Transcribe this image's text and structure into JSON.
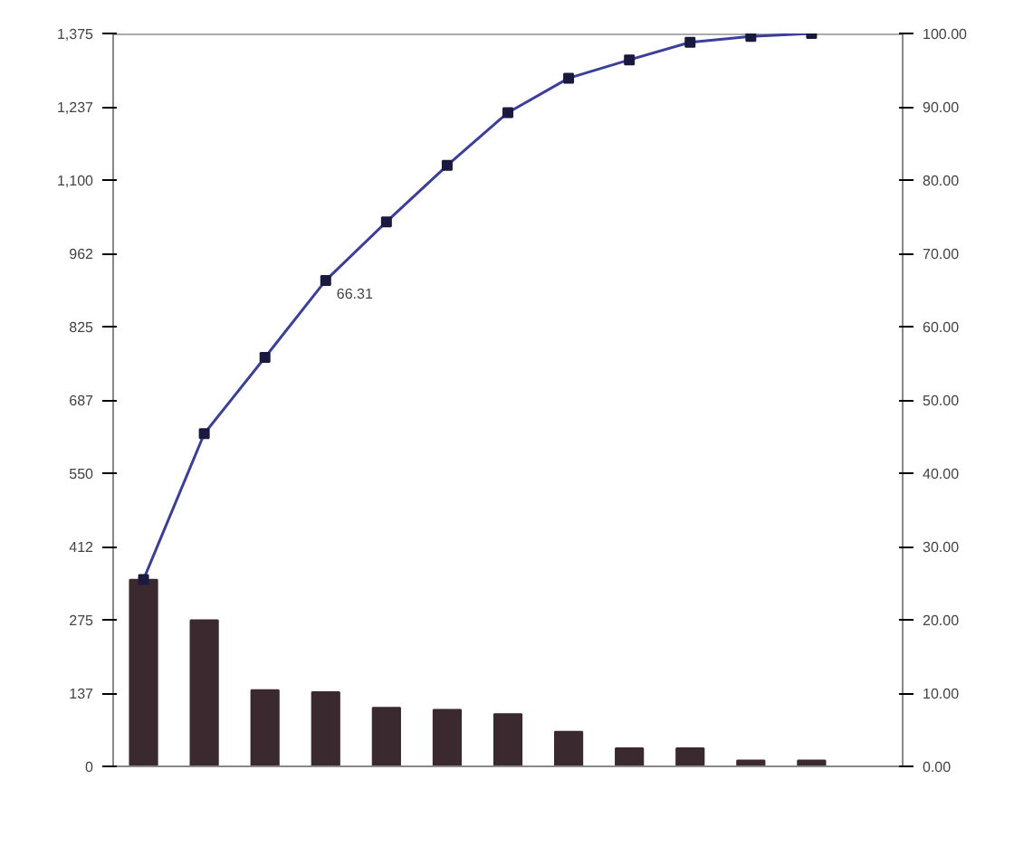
{
  "chart_data": {
    "type": "bar",
    "categories": [
      null,
      null,
      null,
      null,
      null,
      null,
      null,
      null,
      null,
      null,
      null,
      null
    ],
    "series": [
      {
        "color": "#3a2a30",
        "values": [
          350,
          274,
          143,
          139,
          110,
          106,
          98,
          65,
          34,
          34,
          11,
          11
        ]
      },
      {
        "type": "line",
        "axis": "y2",
        "color": "#3b3f9a",
        "values": [
          25.5,
          45.4,
          55.8,
          66.31,
          74.3,
          82.0,
          89.2,
          93.9,
          96.4,
          98.8,
          99.6,
          100
        ],
        "value_labels": [
          null,
          null,
          null,
          "66.31",
          null,
          null,
          null,
          null,
          null,
          null,
          null,
          null
        ]
      }
    ],
    "ylim": [
      0,
      1375
    ],
    "yticks": [
      0,
      137,
      275,
      412,
      550,
      687,
      825,
      962,
      {
        "value": 1100,
        "label": "1,100"
      },
      {
        "value": 1237,
        "label": "1,237"
      },
      {
        "value": 1375,
        "label": "1,375"
      }
    ],
    "y2lim": [
      0,
      100
    ],
    "y2ticks": [
      {
        "value": 0,
        "label": "0.00"
      },
      {
        "value": 10,
        "label": "10.00"
      },
      {
        "value": 20,
        "label": "20.00"
      },
      {
        "value": 30,
        "label": "30.00"
      },
      {
        "value": 40,
        "label": "40.00"
      },
      {
        "value": 50,
        "label": "50.00"
      },
      {
        "value": 60,
        "label": "60.00"
      },
      {
        "value": 70,
        "label": "70.00"
      },
      {
        "value": 80,
        "label": "80.00"
      },
      {
        "value": 90,
        "label": "90.00"
      },
      {
        "value": 100,
        "label": "100.00"
      }
    ],
    "marker": "square",
    "grid": false
  }
}
